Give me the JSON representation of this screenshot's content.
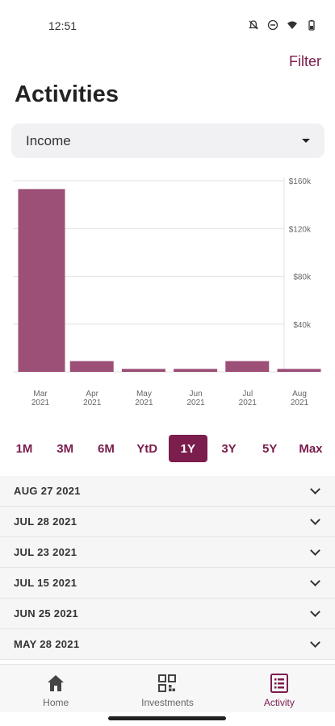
{
  "status_bar": {
    "time": "12:51"
  },
  "header": {
    "filter_label": "Filter",
    "title": "Activities"
  },
  "dropdown": {
    "selected": "Income"
  },
  "chart_data": {
    "type": "bar",
    "categories": [
      [
        "Mar",
        "2021"
      ],
      [
        "Apr",
        "2021"
      ],
      [
        "May",
        "2021"
      ],
      [
        "Jun",
        "2021"
      ],
      [
        "Jul",
        "2021"
      ],
      [
        "Aug",
        "2021"
      ]
    ],
    "values": [
      153000,
      9000,
      2500,
      2500,
      9000,
      2500
    ],
    "y_ticks": [
      40000,
      80000,
      120000,
      160000
    ],
    "y_tick_labels": [
      "$40k",
      "$80k",
      "$120k",
      "$160k"
    ],
    "ylim": [
      0,
      160000
    ],
    "grid": true,
    "bar_color": "#9c4f77",
    "title": "",
    "xlabel": "",
    "ylabel": ""
  },
  "range_tabs": [
    {
      "label": "1M",
      "active": false
    },
    {
      "label": "3M",
      "active": false
    },
    {
      "label": "6M",
      "active": false
    },
    {
      "label": "YtD",
      "active": false
    },
    {
      "label": "1Y",
      "active": true
    },
    {
      "label": "3Y",
      "active": false
    },
    {
      "label": "5Y",
      "active": false
    },
    {
      "label": "Max",
      "active": false
    }
  ],
  "activities": [
    {
      "date": "AUG 27 2021"
    },
    {
      "date": "JUL 28 2021"
    },
    {
      "date": "JUL 23 2021"
    },
    {
      "date": "JUL 15 2021"
    },
    {
      "date": "JUN 25 2021"
    },
    {
      "date": "MAY 28 2021"
    }
  ],
  "bottom_nav": [
    {
      "label": "Home",
      "icon": "home-icon",
      "active": false
    },
    {
      "label": "Investments",
      "icon": "grid-icon",
      "active": false
    },
    {
      "label": "Activity",
      "icon": "list-icon",
      "active": true
    }
  ],
  "colors": {
    "accent": "#7b1d4d",
    "bar": "#9c4f77"
  }
}
